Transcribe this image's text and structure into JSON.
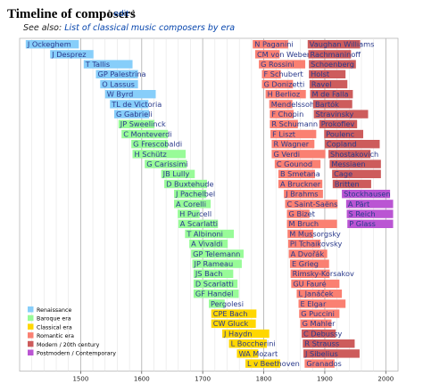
{
  "header": {
    "title": "Timeline of composers",
    "edit_open": "[",
    "edit_link": "edit",
    "edit_close": "]",
    "see_also_prefix": "See also: ",
    "see_also_link": "List of classical music composers by era"
  },
  "colors": {
    "renaissance": "#87cefa",
    "baroque": "#98fb98",
    "classical": "#ffd700",
    "romantic": "#fa8072",
    "modern": "#cd5c5c",
    "postmodern": "#ba55d3",
    "gridline": "#b8b8b8",
    "label": "#2a3a8c"
  },
  "chart_data": {
    "type": "bar",
    "orientation": "horizontal",
    "x_axis": {
      "min": 1400,
      "max": 2020,
      "ticks": [
        1500,
        1600,
        1700,
        1800,
        1900,
        2000
      ]
    },
    "grid": true,
    "legend_position": "bottom-left",
    "legend": [
      {
        "era": "renaissance",
        "label": "Renaissance"
      },
      {
        "era": "baroque",
        "label": "Baroque era"
      },
      {
        "era": "classical",
        "label": "Classical era"
      },
      {
        "era": "romantic",
        "label": "Romantic era"
      },
      {
        "era": "modern",
        "label": "Modern / 20th century"
      },
      {
        "era": "postmodern",
        "label": "Postmodern / Contemporary"
      }
    ],
    "bars": [
      {
        "name": "J Ockeghem",
        "start": 1410,
        "end": 1497,
        "era": "renaissance",
        "row": 0
      },
      {
        "name": "J Desprez",
        "start": 1450,
        "end": 1521,
        "era": "renaissance",
        "row": 1
      },
      {
        "name": "T Tallis",
        "start": 1505,
        "end": 1585,
        "era": "renaissance",
        "row": 2
      },
      {
        "name": "GP Palestrina",
        "start": 1525,
        "end": 1594,
        "era": "renaissance",
        "row": 3
      },
      {
        "name": "O Lassus",
        "start": 1532,
        "end": 1594,
        "era": "renaissance",
        "row": 4
      },
      {
        "name": "W Byrd",
        "start": 1540,
        "end": 1623,
        "era": "renaissance",
        "row": 5
      },
      {
        "name": "TL de Victoria",
        "start": 1548,
        "end": 1611,
        "era": "renaissance",
        "row": 6
      },
      {
        "name": "G Gabrieli",
        "start": 1555,
        "end": 1612,
        "era": "renaissance",
        "row": 7
      },
      {
        "name": "JP Sweelinck",
        "start": 1562,
        "end": 1621,
        "era": "baroque",
        "row": 8
      },
      {
        "name": "C Monteverdi",
        "start": 1567,
        "end": 1643,
        "era": "baroque",
        "row": 9
      },
      {
        "name": "G Frescobaldi",
        "start": 1583,
        "end": 1643,
        "era": "baroque",
        "row": 10
      },
      {
        "name": "H Schütz",
        "start": 1585,
        "end": 1672,
        "era": "baroque",
        "row": 11
      },
      {
        "name": "G Carissimi",
        "start": 1605,
        "end": 1674,
        "era": "baroque",
        "row": 12
      },
      {
        "name": "JB Lully",
        "start": 1632,
        "end": 1687,
        "era": "baroque",
        "row": 13
      },
      {
        "name": "D Buxtehude",
        "start": 1637,
        "end": 1707,
        "era": "baroque",
        "row": 14
      },
      {
        "name": "J Pachelbel",
        "start": 1653,
        "end": 1706,
        "era": "baroque",
        "row": 15
      },
      {
        "name": "A Corelli",
        "start": 1653,
        "end": 1713,
        "era": "baroque",
        "row": 16
      },
      {
        "name": "H Purcell",
        "start": 1659,
        "end": 1695,
        "era": "baroque",
        "row": 17
      },
      {
        "name": "A Scarlatti",
        "start": 1660,
        "end": 1725,
        "era": "baroque",
        "row": 18
      },
      {
        "name": "T Albinoni",
        "start": 1671,
        "end": 1751,
        "era": "baroque",
        "row": 19
      },
      {
        "name": "A Vivaldi",
        "start": 1678,
        "end": 1741,
        "era": "baroque",
        "row": 20
      },
      {
        "name": "GP Telemann",
        "start": 1681,
        "end": 1767,
        "era": "baroque",
        "row": 21
      },
      {
        "name": "JP Rameau",
        "start": 1683,
        "end": 1764,
        "era": "baroque",
        "row": 22
      },
      {
        "name": "JS Bach",
        "start": 1685,
        "end": 1750,
        "era": "baroque",
        "row": 23
      },
      {
        "name": "D Scarlatti",
        "start": 1685,
        "end": 1757,
        "era": "baroque",
        "row": 24
      },
      {
        "name": "GF Handel",
        "start": 1685,
        "end": 1759,
        "era": "baroque",
        "row": 25
      },
      {
        "name": "Pergolesi",
        "start": 1710,
        "end": 1736,
        "era": "baroque",
        "row": 26
      },
      {
        "name": "CPE Bach",
        "start": 1714,
        "end": 1788,
        "era": "classical",
        "row": 27
      },
      {
        "name": "CW Gluck",
        "start": 1714,
        "end": 1787,
        "era": "classical",
        "row": 28
      },
      {
        "name": "J Haydn",
        "start": 1732,
        "end": 1809,
        "era": "classical",
        "row": 29
      },
      {
        "name": "L Boccherini",
        "start": 1743,
        "end": 1805,
        "era": "classical",
        "row": 30
      },
      {
        "name": "WA Mozart",
        "start": 1756,
        "end": 1791,
        "era": "classical",
        "row": 31
      },
      {
        "name": "L v Beethoven",
        "start": 1770,
        "end": 1827,
        "era": "classical",
        "row": 32
      },
      {
        "name": "N Paganini",
        "start": 1782,
        "end": 1840,
        "era": "romantic",
        "row": 0
      },
      {
        "name": "CM von Weber",
        "start": 1786,
        "end": 1826,
        "era": "romantic",
        "row": 1
      },
      {
        "name": "G Rossini",
        "start": 1792,
        "end": 1868,
        "era": "romantic",
        "row": 2
      },
      {
        "name": "F Schubert",
        "start": 1797,
        "end": 1828,
        "era": "romantic",
        "row": 3
      },
      {
        "name": "G Donizetti",
        "start": 1797,
        "end": 1848,
        "era": "romantic",
        "row": 4
      },
      {
        "name": "H Berlioz",
        "start": 1803,
        "end": 1869,
        "era": "romantic",
        "row": 5
      },
      {
        "name": "Mendelssohn",
        "start": 1809,
        "end": 1847,
        "era": "romantic",
        "row": 6
      },
      {
        "name": "F Chopin",
        "start": 1810,
        "end": 1849,
        "era": "romantic",
        "row": 7
      },
      {
        "name": "R Schumann",
        "start": 1810,
        "end": 1856,
        "era": "romantic",
        "row": 8
      },
      {
        "name": "F Liszt",
        "start": 1811,
        "end": 1886,
        "era": "romantic",
        "row": 9
      },
      {
        "name": "R Wagner",
        "start": 1813,
        "end": 1883,
        "era": "romantic",
        "row": 10
      },
      {
        "name": "G Verdi",
        "start": 1813,
        "end": 1901,
        "era": "romantic",
        "row": 11
      },
      {
        "name": "C Gounod",
        "start": 1818,
        "end": 1893,
        "era": "romantic",
        "row": 12
      },
      {
        "name": "B Smetana",
        "start": 1824,
        "end": 1884,
        "era": "romantic",
        "row": 13
      },
      {
        "name": "A Bruckner",
        "start": 1824,
        "end": 1896,
        "era": "romantic",
        "row": 14
      },
      {
        "name": "J Brahms",
        "start": 1833,
        "end": 1897,
        "era": "romantic",
        "row": 15
      },
      {
        "name": "C Saint-Saëns",
        "start": 1835,
        "end": 1921,
        "era": "romantic",
        "row": 16
      },
      {
        "name": "G Bizet",
        "start": 1838,
        "end": 1875,
        "era": "romantic",
        "row": 17
      },
      {
        "name": "M Bruch",
        "start": 1838,
        "end": 1920,
        "era": "romantic",
        "row": 18
      },
      {
        "name": "M Mussorgsky",
        "start": 1839,
        "end": 1881,
        "era": "romantic",
        "row": 19
      },
      {
        "name": "PI Tchaikovsky",
        "start": 1840,
        "end": 1893,
        "era": "romantic",
        "row": 20
      },
      {
        "name": "A Dvořák",
        "start": 1841,
        "end": 1904,
        "era": "romantic",
        "row": 21
      },
      {
        "name": "E Grieg",
        "start": 1843,
        "end": 1907,
        "era": "romantic",
        "row": 22
      },
      {
        "name": "Rimsky-Korsakov",
        "start": 1844,
        "end": 1908,
        "era": "romantic",
        "row": 23
      },
      {
        "name": "GU Fauré",
        "start": 1845,
        "end": 1924,
        "era": "romantic",
        "row": 24
      },
      {
        "name": "L Janáček",
        "start": 1854,
        "end": 1928,
        "era": "romantic",
        "row": 25
      },
      {
        "name": "E Elgar",
        "start": 1857,
        "end": 1934,
        "era": "romantic",
        "row": 26
      },
      {
        "name": "G Puccini",
        "start": 1858,
        "end": 1924,
        "era": "romantic",
        "row": 27
      },
      {
        "name": "G Mahler",
        "start": 1860,
        "end": 1911,
        "era": "romantic",
        "row": 28
      },
      {
        "name": "C Debussy",
        "start": 1862,
        "end": 1918,
        "era": "modern",
        "row": 29
      },
      {
        "name": "R Strauss",
        "start": 1864,
        "end": 1949,
        "era": "modern",
        "row": 30
      },
      {
        "name": "J Sibelius",
        "start": 1865,
        "end": 1957,
        "era": "modern",
        "row": 31
      },
      {
        "name": "Granados",
        "start": 1867,
        "end": 1916,
        "era": "romantic",
        "row": 32
      },
      {
        "name": "Vaughan Williams",
        "start": 1872,
        "end": 1958,
        "era": "modern",
        "row": 0
      },
      {
        "name": "Rachmaninoff",
        "start": 1873,
        "end": 1943,
        "era": "modern",
        "row": 1
      },
      {
        "name": "Schoenberg",
        "start": 1874,
        "end": 1951,
        "era": "modern",
        "row": 2
      },
      {
        "name": "Holst",
        "start": 1874,
        "end": 1934,
        "era": "modern",
        "row": 3
      },
      {
        "name": "Ravel",
        "start": 1875,
        "end": 1937,
        "era": "modern",
        "row": 4
      },
      {
        "name": "M de Falla",
        "start": 1876,
        "end": 1946,
        "era": "modern",
        "row": 5
      },
      {
        "name": "Bartók",
        "start": 1881,
        "end": 1945,
        "era": "modern",
        "row": 6
      },
      {
        "name": "Stravinsky",
        "start": 1882,
        "end": 1971,
        "era": "modern",
        "row": 7
      },
      {
        "name": "Prokofiev",
        "start": 1891,
        "end": 1953,
        "era": "modern",
        "row": 8
      },
      {
        "name": "Poulenc",
        "start": 1899,
        "end": 1963,
        "era": "modern",
        "row": 9
      },
      {
        "name": "Copland",
        "start": 1900,
        "end": 1990,
        "era": "modern",
        "row": 10
      },
      {
        "name": "Shostakovich",
        "start": 1906,
        "end": 1975,
        "era": "modern",
        "row": 11
      },
      {
        "name": "Messiaen",
        "start": 1908,
        "end": 1992,
        "era": "modern",
        "row": 12
      },
      {
        "name": "Cage",
        "start": 1912,
        "end": 1992,
        "era": "modern",
        "row": 13
      },
      {
        "name": "Britten",
        "start": 1913,
        "end": 1976,
        "era": "modern",
        "row": 14
      },
      {
        "name": "Stockhausen",
        "start": 1928,
        "end": 2007,
        "era": "postmodern",
        "row": 15
      },
      {
        "name": "A Pärt",
        "start": 1935,
        "end": 2012,
        "era": "postmodern",
        "row": 16
      },
      {
        "name": "S Reich",
        "start": 1936,
        "end": 2012,
        "era": "postmodern",
        "row": 17
      },
      {
        "name": "P Glass",
        "start": 1937,
        "end": 2012,
        "era": "postmodern",
        "row": 18
      }
    ]
  }
}
